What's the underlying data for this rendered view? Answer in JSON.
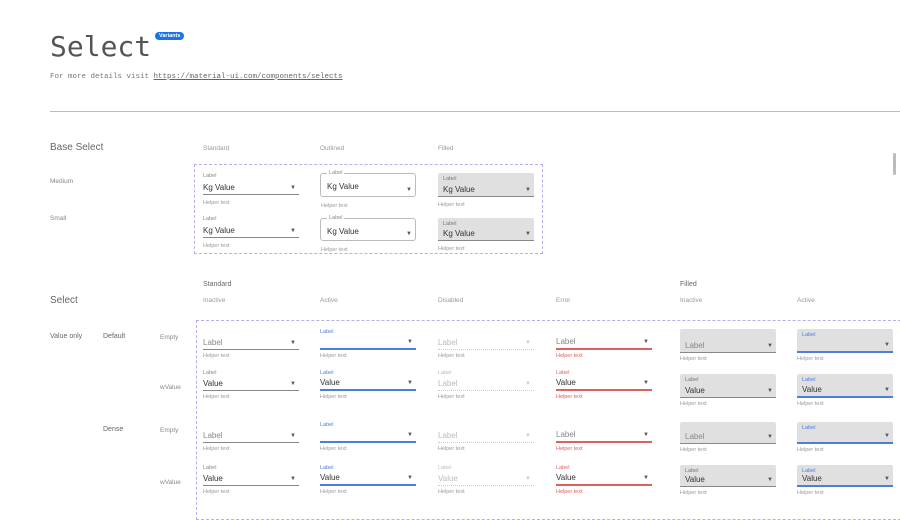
{
  "header": {
    "title": "Select",
    "badge": "Variants",
    "intro": "For more details visit ",
    "link": "https://material-ui.com/components/selects"
  },
  "base": {
    "title": "Base Select",
    "columns": [
      "Standard",
      "Outlined",
      "Filled"
    ],
    "rows": [
      {
        "label": "Medium"
      },
      {
        "label": "Small"
      }
    ],
    "field": {
      "label": "Label",
      "value": "Kg  Value",
      "helper": "Helper text"
    }
  },
  "select": {
    "title": "Select",
    "groups": {
      "standard": "Standard",
      "filled": "Filled"
    },
    "columns": [
      {
        "label": "Inactive",
        "type": "std",
        "state": "inactive"
      },
      {
        "label": "Active",
        "type": "std",
        "state": "active"
      },
      {
        "label": "Disabled",
        "type": "std",
        "state": "disabled"
      },
      {
        "label": "Error",
        "type": "std",
        "state": "error"
      },
      {
        "label": "Inactive",
        "type": "fil",
        "state": "inactive"
      },
      {
        "label": "Active",
        "type": "fil",
        "state": "active"
      }
    ],
    "category": "Value only",
    "rows": [
      {
        "variant": "Default",
        "kind": "Empty",
        "cells": [
          {
            "value": "Label",
            "helper": "Helper text",
            "empty": true
          },
          {
            "label": "Label",
            "value": "",
            "helper": "Helper text"
          },
          {
            "value": "Label",
            "helper": "Helper text",
            "empty": true
          },
          {
            "value": "Label",
            "helper": "Helper text",
            "empty": true
          },
          {
            "value": "Label",
            "helper": "Helper text",
            "empty": true
          },
          {
            "label": "Label",
            "value": "",
            "helper": "Helper text"
          }
        ]
      },
      {
        "variant": "",
        "kind": "wValue",
        "cells": [
          {
            "label": "Label",
            "value": "Value",
            "helper": "Helper text"
          },
          {
            "label": "Label",
            "value": "Value",
            "helper": "Helper text"
          },
          {
            "label": "Label",
            "value": "Label",
            "helper": "Helper text"
          },
          {
            "label": "Label",
            "value": "Value",
            "helper": "Helper text"
          },
          {
            "label": "Label",
            "value": "Value",
            "helper": "Helper text"
          },
          {
            "label": "Label",
            "value": "Value",
            "helper": "Helper text"
          }
        ]
      },
      {
        "variant": "Dense",
        "kind": "Empty",
        "cells": [
          {
            "value": "Label",
            "helper": "Helper text",
            "empty": true
          },
          {
            "label": "Label",
            "value": "",
            "helper": "Helper text"
          },
          {
            "value": "Label",
            "helper": "Helper text",
            "empty": true
          },
          {
            "value": "Label",
            "helper": "Helper text",
            "empty": true
          },
          {
            "value": "Label",
            "helper": "Helper text",
            "empty": true
          },
          {
            "label": "Label",
            "value": "",
            "helper": "Helper text"
          }
        ]
      },
      {
        "variant": "",
        "kind": "wValue",
        "cells": [
          {
            "label": "Label",
            "value": "Value",
            "helper": "Helper text"
          },
          {
            "label": "Label",
            "value": "Value",
            "helper": "Helper text"
          },
          {
            "label": "Label",
            "value": "Value",
            "helper": "Helper text"
          },
          {
            "label": "Label",
            "value": "Value",
            "helper": "Helper text"
          },
          {
            "label": "Label",
            "value": "Value",
            "helper": "Helper text"
          },
          {
            "label": "Label",
            "value": "Value",
            "helper": "Helper text"
          }
        ]
      }
    ]
  },
  "colors": {
    "accent": "#4a7fdc",
    "error": "#e06060",
    "badge": "#1a73e8",
    "dashed": "#b8aee8"
  }
}
